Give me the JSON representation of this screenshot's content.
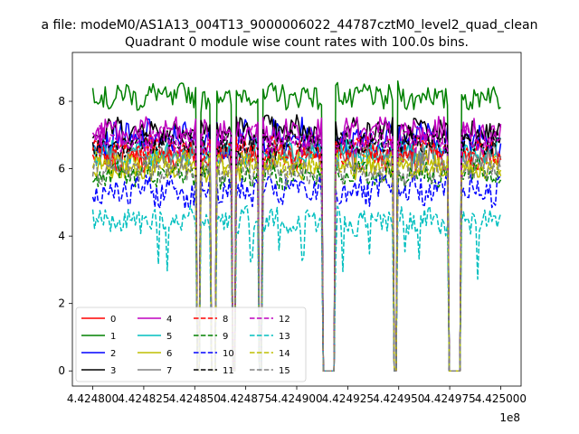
{
  "suptitle": "a file: modeM0/AS1A13_004T13_9000006022_44787cztM0_level2_quad_clean",
  "chart_data": {
    "type": "line",
    "title": "Quadrant 0 module wise count rates with 100.0s bins.",
    "xlabel": "",
    "ylabel": "",
    "x_offset_label": "1e8",
    "xlim": [
      4.42479,
      4.42501
    ],
    "ylim": [
      -0.45,
      9.45
    ],
    "xticks": [
      4.4248,
      4.424825,
      4.42485,
      4.424875,
      4.4249,
      4.424925,
      4.42495,
      4.424975,
      4.425
    ],
    "xtick_labels": [
      "4.424800",
      "4.424825",
      "4.424850",
      "4.424875",
      "4.424900",
      "4.424925",
      "4.424950",
      "4.424975",
      "4.425000"
    ],
    "yticks": [
      0,
      2,
      4,
      6,
      8
    ],
    "ytick_labels": [
      "0",
      "2",
      "4",
      "6",
      "8"
    ],
    "grid": false,
    "legend_placement": "lower-left",
    "legend_columns": 4,
    "gaps": [
      [
        4.424851,
        4.424853
      ],
      [
        4.424858,
        4.42486
      ],
      [
        4.424868,
        4.42487
      ],
      [
        4.424881,
        4.424883
      ],
      [
        4.424913,
        4.424919
      ],
      [
        4.424947,
        4.424949
      ],
      [
        4.424974,
        4.42498
      ]
    ],
    "series": [
      {
        "name": "0",
        "color": "#ff0000",
        "dash": "solid",
        "mean": 6.35,
        "amp": 0.35
      },
      {
        "name": "1",
        "color": "#008000",
        "dash": "solid",
        "mean": 8.15,
        "amp": 0.35
      },
      {
        "name": "2",
        "color": "#0000ff",
        "dash": "solid",
        "mean": 6.9,
        "amp": 0.45
      },
      {
        "name": "3",
        "color": "#000000",
        "dash": "solid",
        "mean": 7.15,
        "amp": 0.35
      },
      {
        "name": "4",
        "color": "#bf00bf",
        "dash": "solid",
        "mean": 7.05,
        "amp": 0.4
      },
      {
        "name": "5",
        "color": "#00bfbf",
        "dash": "solid",
        "mean": 6.45,
        "amp": 0.35
      },
      {
        "name": "6",
        "color": "#bfbf00",
        "dash": "solid",
        "mean": 6.0,
        "amp": 0.3
      },
      {
        "name": "7",
        "color": "#808080",
        "dash": "solid",
        "mean": 6.4,
        "amp": 0.35
      },
      {
        "name": "8",
        "color": "#ff0000",
        "dash": "dashed",
        "mean": 6.55,
        "amp": 0.35
      },
      {
        "name": "9",
        "color": "#008000",
        "dash": "dashed",
        "mean": 5.85,
        "amp": 0.35
      },
      {
        "name": "10",
        "color": "#0000ff",
        "dash": "dashed",
        "mean": 5.35,
        "amp": 0.4
      },
      {
        "name": "11",
        "color": "#000000",
        "dash": "dashed",
        "mean": 6.75,
        "amp": 0.35
      },
      {
        "name": "12",
        "color": "#bf00bf",
        "dash": "dashed",
        "mean": 6.85,
        "amp": 0.35
      },
      {
        "name": "13",
        "color": "#00bfbf",
        "dash": "dashed",
        "mean": 4.45,
        "amp": 0.35
      },
      {
        "name": "14",
        "color": "#bfbf00",
        "dash": "dashed",
        "mean": 6.15,
        "amp": 0.3
      },
      {
        "name": "15",
        "color": "#808080",
        "dash": "dashed",
        "mean": 5.95,
        "amp": 0.35
      }
    ]
  }
}
